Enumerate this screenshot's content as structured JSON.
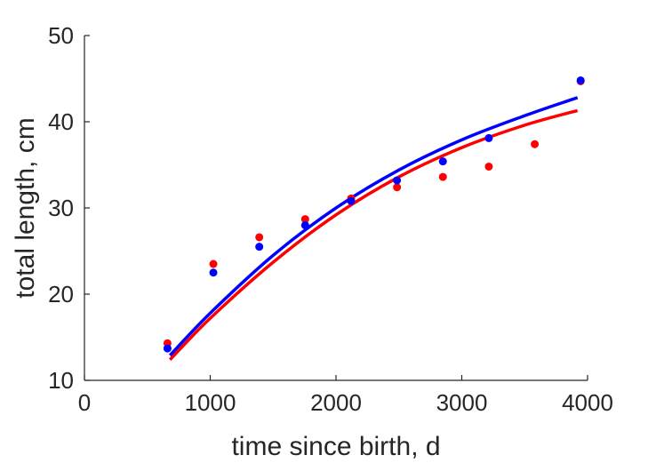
{
  "chart_data": {
    "type": "scatter",
    "xlabel": "time since birth, d",
    "ylabel": "total length, cm",
    "xlim": [
      0,
      4000
    ],
    "ylim": [
      10,
      50
    ],
    "x_ticks": [
      "0",
      "1000",
      "2000",
      "3000",
      "4000"
    ],
    "y_ticks": [
      "10",
      "20",
      "30",
      "40",
      "50"
    ],
    "grid": false,
    "legend": "none",
    "series": [
      {
        "color": "#ff0000",
        "points": [
          {
            "x": 660,
            "y": 14.3
          },
          {
            "x": 1025,
            "y": 23.5
          },
          {
            "x": 1390,
            "y": 26.6
          },
          {
            "x": 1755,
            "y": 28.7
          },
          {
            "x": 2120,
            "y": 31.1
          },
          {
            "x": 2485,
            "y": 32.4
          },
          {
            "x": 2850,
            "y": 33.6
          },
          {
            "x": 3215,
            "y": 34.8
          },
          {
            "x": 3580,
            "y": 37.4
          },
          {
            "x": 3945,
            "y": 44.7
          }
        ],
        "curve": [
          {
            "x": 680,
            "y": 12.4
          },
          {
            "x": 1000,
            "y": 17.2
          },
          {
            "x": 1500,
            "y": 23.7
          },
          {
            "x": 2000,
            "y": 29.2
          },
          {
            "x": 2500,
            "y": 33.6
          },
          {
            "x": 3000,
            "y": 37.0
          },
          {
            "x": 3500,
            "y": 39.6
          },
          {
            "x": 3920,
            "y": 41.3
          }
        ]
      },
      {
        "color": "#0000ff",
        "points": [
          {
            "x": 660,
            "y": 13.7
          },
          {
            "x": 1025,
            "y": 22.5
          },
          {
            "x": 1390,
            "y": 25.5
          },
          {
            "x": 1755,
            "y": 28.0
          },
          {
            "x": 2120,
            "y": 30.8
          },
          {
            "x": 2485,
            "y": 33.2
          },
          {
            "x": 2850,
            "y": 35.4
          },
          {
            "x": 3215,
            "y": 38.1
          },
          {
            "x": 3945,
            "y": 44.8
          }
        ],
        "curve": [
          {
            "x": 680,
            "y": 12.9
          },
          {
            "x": 1000,
            "y": 17.8
          },
          {
            "x": 1500,
            "y": 24.5
          },
          {
            "x": 2000,
            "y": 30.0
          },
          {
            "x": 2500,
            "y": 34.4
          },
          {
            "x": 3000,
            "y": 37.9
          },
          {
            "x": 3500,
            "y": 40.7
          },
          {
            "x": 3920,
            "y": 42.8
          }
        ]
      }
    ]
  }
}
